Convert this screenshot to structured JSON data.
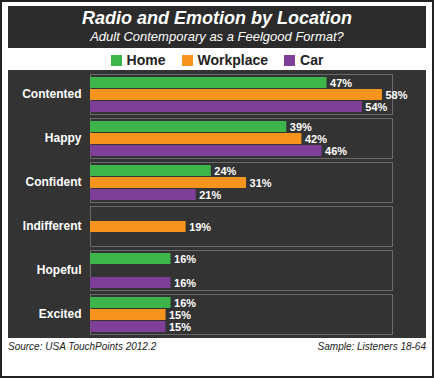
{
  "chart_data": {
    "type": "bar",
    "title": "Radio and Emotion by Location",
    "subtitle": "Adult Contemporary as a Feelgood Format?",
    "orientation": "horizontal",
    "categories": [
      "Contented",
      "Happy",
      "Confident",
      "Indifferent",
      "Hopeful",
      "Excited"
    ],
    "series": [
      {
        "name": "Home",
        "color": "#3db54a",
        "values": [
          47,
          39,
          24,
          null,
          16,
          16
        ],
        "value_labels": [
          "47%",
          "39%",
          "24%",
          null,
          "16%",
          "16%"
        ]
      },
      {
        "name": "Workplace",
        "color": "#f7941d",
        "values": [
          58,
          42,
          31,
          19,
          null,
          15
        ],
        "value_labels": [
          "58%",
          "42%",
          "31%",
          "19%",
          null,
          "15%"
        ]
      },
      {
        "name": "Car",
        "color": "#7d3f98",
        "values": [
          54,
          46,
          21,
          null,
          16,
          15
        ],
        "value_labels": [
          "54%",
          "46%",
          "21%",
          null,
          "16%",
          "15%"
        ]
      }
    ],
    "xlim": [
      0,
      60
    ],
    "xticks": [],
    "data_labels": true,
    "tick_labels": "y",
    "legend": "top",
    "source": "Source:  USA TouchPoints 2012.2",
    "sample": "Sample: Listeners 18-64"
  }
}
